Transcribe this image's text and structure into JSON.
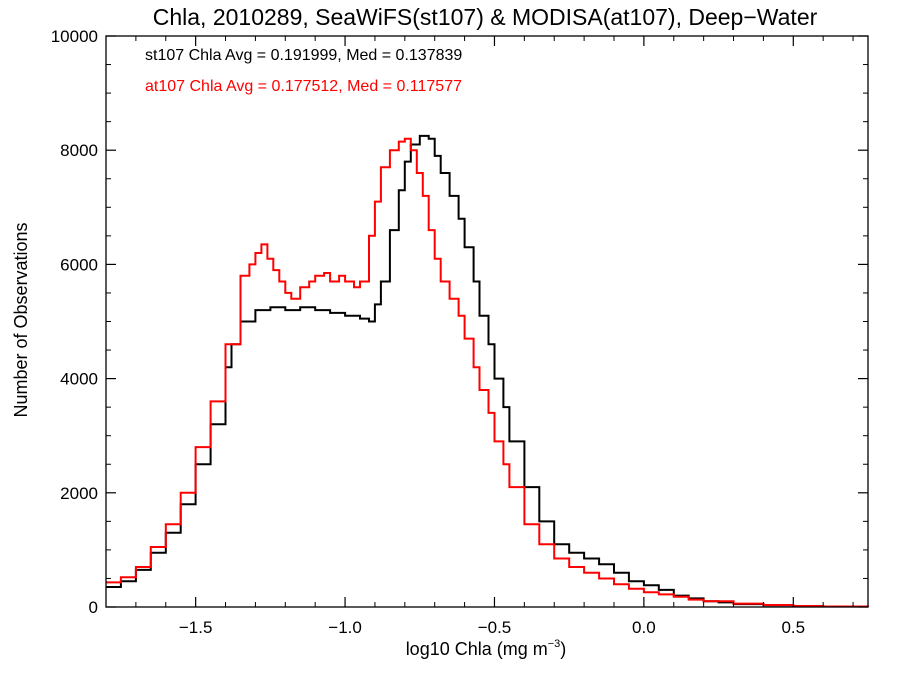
{
  "chart_data": {
    "type": "line",
    "title": "Chla, 2010289, SeaWiFS(st107) & MODISA(at107), Deep−Water",
    "xlabel_main": "log10 Chla (mg m",
    "xlabel_sup": "−3",
    "xlabel_end": ")",
    "ylabel": "Number of Observations",
    "xlim": [
      -1.8,
      0.75
    ],
    "ylim": [
      0,
      10000
    ],
    "x_ticks": [
      -1.5,
      -1.0,
      -0.5,
      0.0,
      0.5
    ],
    "x_tick_labels": [
      "−1.5",
      "−1.0",
      "−0.5",
      "0.0",
      "0.5"
    ],
    "x_minor_step": 0.1,
    "y_ticks": [
      0,
      2000,
      4000,
      6000,
      8000,
      10000
    ],
    "y_tick_labels": [
      "0",
      "2000",
      "4000",
      "6000",
      "8000",
      "10000"
    ],
    "y_minor_step": 500,
    "grid": false,
    "annotations": [
      {
        "text": "st107 Chla Avg = 0.191999, Med = 0.137839",
        "color": "#000000"
      },
      {
        "text": "at107 Chla Avg = 0.177512, Med = 0.117577",
        "color": "#ff0000"
      }
    ],
    "series": [
      {
        "color": "#000000",
        "x": [
          -1.8,
          -1.75,
          -1.7,
          -1.65,
          -1.6,
          -1.55,
          -1.5,
          -1.45,
          -1.4,
          -1.38,
          -1.35,
          -1.3,
          -1.25,
          -1.2,
          -1.15,
          -1.1,
          -1.05,
          -1.0,
          -0.95,
          -0.92,
          -0.9,
          -0.88,
          -0.85,
          -0.82,
          -0.8,
          -0.78,
          -0.75,
          -0.72,
          -0.7,
          -0.68,
          -0.65,
          -0.62,
          -0.6,
          -0.57,
          -0.55,
          -0.52,
          -0.5,
          -0.47,
          -0.45,
          -0.4,
          -0.35,
          -0.3,
          -0.25,
          -0.2,
          -0.15,
          -0.1,
          -0.05,
          0.0,
          0.05,
          0.1,
          0.15,
          0.2,
          0.25,
          0.3,
          0.4,
          0.5,
          0.6,
          0.75
        ],
        "y": [
          350,
          450,
          650,
          950,
          1300,
          1800,
          2500,
          3200,
          4200,
          4600,
          5000,
          5200,
          5250,
          5200,
          5250,
          5200,
          5150,
          5100,
          5050,
          5000,
          5300,
          5700,
          6600,
          7300,
          7800,
          8100,
          8250,
          8200,
          7900,
          7600,
          7200,
          6800,
          6300,
          5700,
          5100,
          4600,
          4000,
          3500,
          2900,
          2100,
          1500,
          1100,
          950,
          850,
          750,
          600,
          450,
          380,
          300,
          200,
          150,
          100,
          80,
          50,
          30,
          15,
          8,
          5
        ]
      },
      {
        "color": "#ff0000",
        "x": [
          -1.8,
          -1.75,
          -1.7,
          -1.65,
          -1.6,
          -1.55,
          -1.5,
          -1.45,
          -1.4,
          -1.35,
          -1.32,
          -1.3,
          -1.28,
          -1.26,
          -1.24,
          -1.22,
          -1.2,
          -1.18,
          -1.15,
          -1.12,
          -1.1,
          -1.07,
          -1.05,
          -1.02,
          -1.0,
          -0.97,
          -0.95,
          -0.92,
          -0.9,
          -0.88,
          -0.85,
          -0.82,
          -0.8,
          -0.78,
          -0.76,
          -0.74,
          -0.72,
          -0.7,
          -0.68,
          -0.65,
          -0.62,
          -0.6,
          -0.57,
          -0.55,
          -0.52,
          -0.5,
          -0.47,
          -0.45,
          -0.4,
          -0.35,
          -0.3,
          -0.25,
          -0.2,
          -0.15,
          -0.1,
          -0.05,
          0.0,
          0.05,
          0.1,
          0.15,
          0.2,
          0.3,
          0.4,
          0.5,
          0.6,
          0.75
        ],
        "y": [
          430,
          520,
          700,
          1050,
          1450,
          2000,
          2800,
          3600,
          4600,
          5800,
          6000,
          6200,
          6350,
          6100,
          5900,
          5700,
          5500,
          5400,
          5600,
          5700,
          5800,
          5850,
          5700,
          5800,
          5700,
          5600,
          5700,
          6500,
          7100,
          7700,
          8000,
          8150,
          8200,
          8000,
          7600,
          7200,
          6600,
          6100,
          5700,
          5400,
          5100,
          4700,
          4200,
          3800,
          3400,
          2900,
          2500,
          2100,
          1450,
          1100,
          850,
          700,
          600,
          500,
          400,
          320,
          260,
          220,
          180,
          130,
          100,
          60,
          35,
          18,
          8,
          4
        ]
      }
    ]
  }
}
